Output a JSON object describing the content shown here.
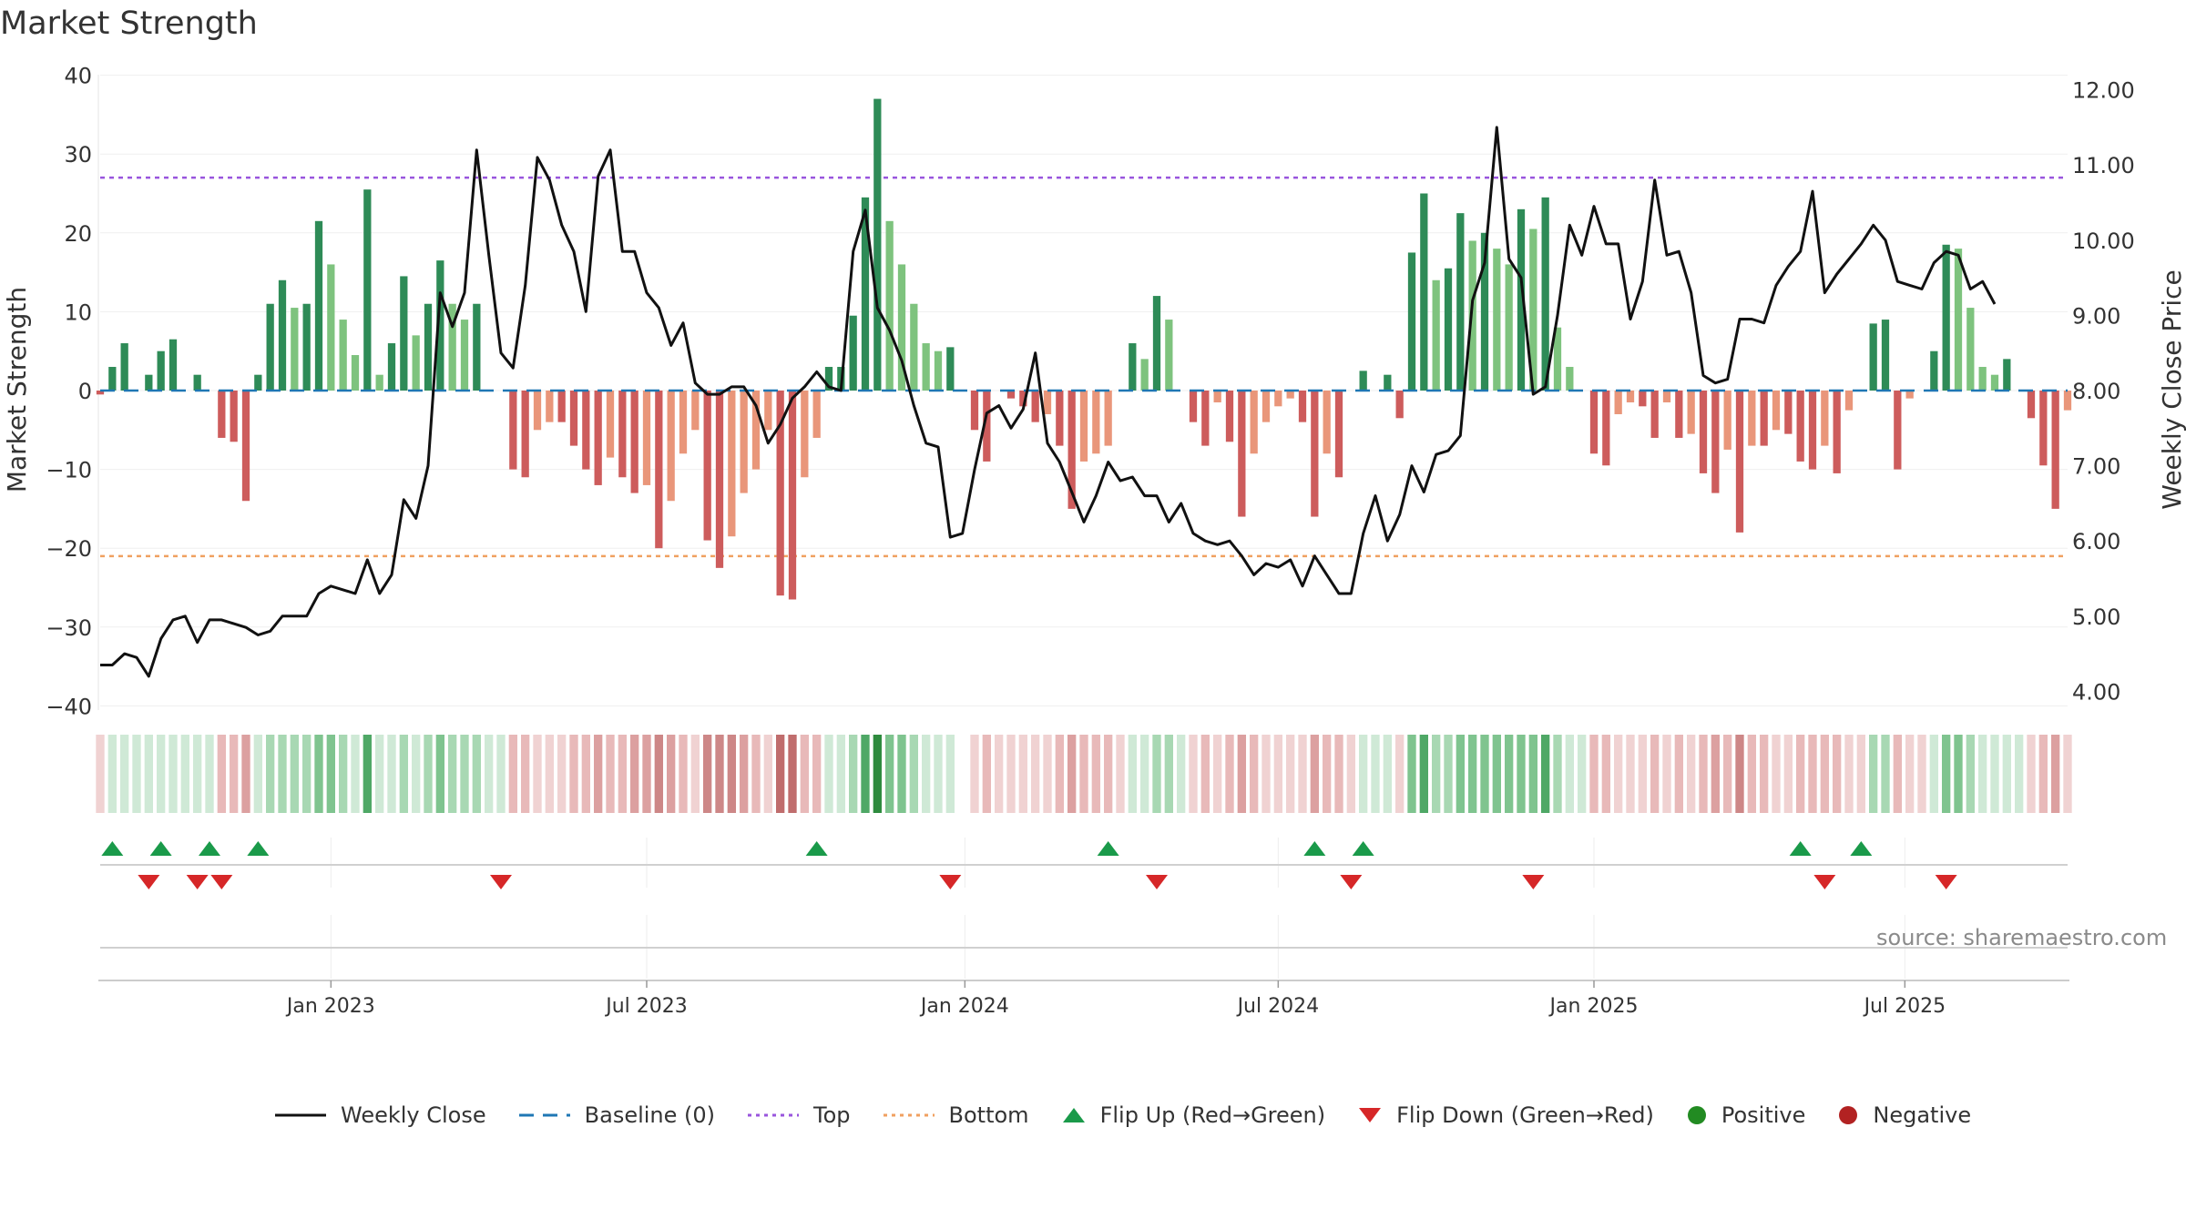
{
  "chart_data": {
    "type": "bar",
    "title": "Market Strength",
    "ylabel": "Market Strength",
    "y2label": "Weekly Close Price",
    "ylim": [
      -40,
      40
    ],
    "y2lim": [
      3.5,
      12.3
    ],
    "yticks": [
      "40",
      "30",
      "20",
      "10",
      "0",
      "−10",
      "−20",
      "−30",
      "−40"
    ],
    "y2ticks": [
      "12.00",
      "11.00",
      "10.00",
      "9.00",
      "8.00",
      "7.00",
      "6.00",
      "5.00",
      "4.00"
    ],
    "xticks": [
      "Jan 2023",
      "Jul 2023",
      "Jan 2024",
      "Jul 2024",
      "Jan 2025",
      "Jul 2025"
    ],
    "top_line": 27,
    "bottom_line": -21,
    "legend": [
      "Weekly Close",
      "Baseline (0)",
      "Top",
      "Bottom",
      "Flip Up (Red→Green)",
      "Flip Down (Green→Red)",
      "Positive",
      "Negative"
    ],
    "source": "source: sharemaestro.com",
    "strength": [
      -0.5,
      3,
      6,
      0,
      2,
      5,
      6.5,
      0,
      2,
      0,
      -6,
      -6.5,
      -14,
      2,
      11,
      14,
      10.5,
      11,
      21.5,
      16,
      9,
      4.5,
      25.5,
      2,
      6,
      14.5,
      7,
      11,
      16.5,
      11,
      9,
      11,
      0,
      0,
      -10,
      -11,
      -5,
      -4,
      -4,
      -7,
      -10,
      -12,
      -8.5,
      -11,
      -13,
      -12,
      -20,
      -14,
      -8,
      -5,
      -19,
      -22.5,
      -18.5,
      -13,
      -10,
      -5,
      -26,
      -26.5,
      -11,
      -6,
      3,
      3,
      9.5,
      24.5,
      37,
      21.5,
      16,
      11,
      6,
      5,
      5.5,
      0,
      -5,
      -9,
      0,
      -1,
      -2,
      -4,
      -3,
      -7,
      -15,
      -9,
      -8,
      -7,
      0,
      6,
      4,
      12,
      9,
      0,
      -4,
      -7,
      -1.5,
      -6.5,
      -16,
      -8,
      -4,
      -2,
      -1,
      -4,
      -16,
      -8,
      -11,
      0,
      2.5,
      0,
      2,
      -3.5,
      17.5,
      25,
      14,
      15.5,
      22.5,
      19,
      20,
      18,
      16,
      23,
      20.5,
      24.5,
      8,
      3,
      0,
      -8,
      -9.5,
      -3,
      -1.5,
      -2,
      -6,
      -1.5,
      -6,
      -5.5,
      -10.5,
      -13,
      -7.5,
      -18,
      -7,
      -7,
      -5,
      -5.5,
      -9,
      -10,
      -7,
      -10.5,
      -2.5,
      0,
      8.5,
      9,
      -10,
      -1,
      0,
      5,
      18.5,
      18,
      10.5,
      3,
      2,
      4,
      0,
      -3.5,
      -9.5,
      -15,
      -2.5
    ],
    "close": [
      4.35,
      4.35,
      4.5,
      4.45,
      4.2,
      4.7,
      4.95,
      5.0,
      4.65,
      4.95,
      4.95,
      4.9,
      4.85,
      4.75,
      4.8,
      5.0,
      5.0,
      5.0,
      5.3,
      5.4,
      5.35,
      5.3,
      5.75,
      5.3,
      5.55,
      6.55,
      6.3,
      7.0,
      9.3,
      8.85,
      9.3,
      11.2,
      9.8,
      8.5,
      8.3,
      9.4,
      11.1,
      10.8,
      10.2,
      9.85,
      9.05,
      10.85,
      11.2,
      9.85,
      9.85,
      9.3,
      9.1,
      8.6,
      8.9,
      8.1,
      7.95,
      7.95,
      8.05,
      8.05,
      7.8,
      7.3,
      7.55,
      7.9,
      8.05,
      8.25,
      8.05,
      8.0,
      9.85,
      10.4,
      9.1,
      8.8,
      8.4,
      7.8,
      7.3,
      7.25,
      6.05,
      6.1,
      6.95,
      7.7,
      7.8,
      7.5,
      7.75,
      8.5,
      7.3,
      7.05,
      6.65,
      6.25,
      6.6,
      7.05,
      6.8,
      6.85,
      6.6,
      6.6,
      6.25,
      6.5,
      6.1,
      6.0,
      5.95,
      6.0,
      5.8,
      5.55,
      5.7,
      5.65,
      5.75,
      5.4,
      5.8,
      5.55,
      5.3,
      5.3,
      6.1,
      6.6,
      6.0,
      6.35,
      7.0,
      6.65,
      7.15,
      7.2,
      7.4,
      9.2,
      9.7,
      11.5,
      9.75,
      9.5,
      7.95,
      8.05,
      9.0,
      10.2,
      9.8,
      10.45,
      9.95,
      9.95,
      8.95,
      9.45,
      10.8,
      9.8,
      9.85,
      9.3,
      8.2,
      8.1,
      8.15,
      8.95,
      8.95,
      8.9,
      9.4,
      9.65,
      9.85,
      10.65,
      9.3,
      9.55,
      9.75,
      9.95,
      10.2,
      10.0,
      9.45,
      9.4,
      9.35,
      9.7,
      9.85,
      9.8,
      9.35,
      9.45,
      9.15
    ]
  },
  "flips_up_weeks": [
    1,
    5,
    9,
    13,
    59,
    83,
    100,
    104,
    140,
    145
  ],
  "flips_down_weeks": [
    4,
    8,
    10,
    33,
    70,
    87,
    103,
    118,
    142,
    152
  ],
  "colors": {
    "strong_green": "#2e8b57",
    "light_green": "#7ec37e",
    "strong_red": "#cd5c5c",
    "light_red": "#e9967a",
    "close_line": "#111111",
    "baseline": "#1f77b4",
    "top_line": "#9955dd",
    "bottom_line": "#f0a060",
    "flip_up": "#1a9a4a",
    "flip_down": "#d62728",
    "positive": "#228b22",
    "negative": "#b22222"
  }
}
